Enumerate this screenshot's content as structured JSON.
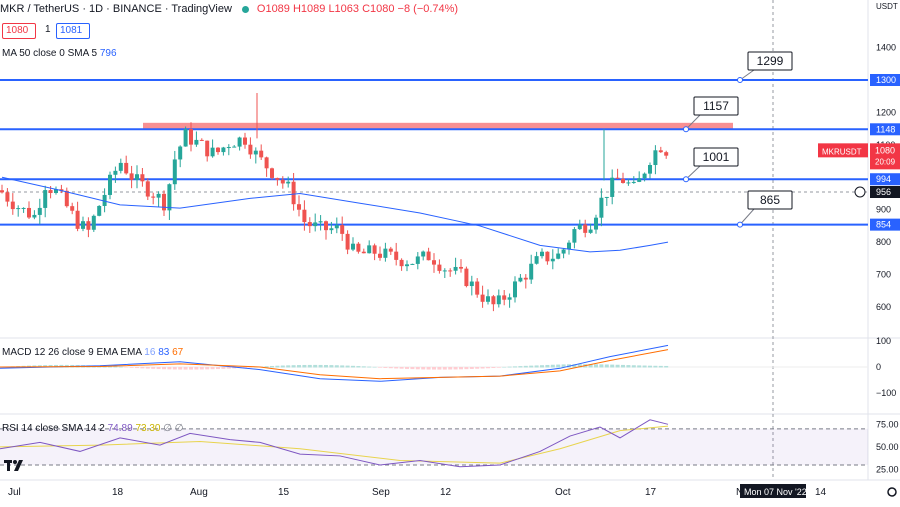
{
  "header": {
    "symbol": "MKR / TetherUS · 1D · BINANCE · TradingView",
    "ohlc": "O1089 H1089 L1063 C1080 −8 (−0.74%)",
    "sell_price": "1080",
    "spread": "1",
    "buy_price": "1081"
  },
  "indicators": {
    "ma_label": "MA 50 close 0 SMA 5",
    "ma_value": "796",
    "macd_label": "MACD 12 26 close 9 EMA EMA",
    "macd_values": [
      "16",
      "83",
      "67"
    ],
    "rsi_label": "RSI 14 close SMA 14 2",
    "rsi_values": [
      "74.89",
      "73.30",
      "∅",
      "∅"
    ]
  },
  "axis": {
    "currency": "USDT",
    "price_ticks": [
      "1400",
      "1300",
      "1200",
      "1100",
      "900",
      "800",
      "700",
      "600"
    ],
    "macd_ticks": [
      "100",
      "0",
      "−100"
    ],
    "rsi_ticks": [
      "75.00",
      "50.00",
      "25.00"
    ],
    "time_ticks": [
      "Jul",
      "18",
      "Aug",
      "15",
      "Sep",
      "12",
      "Oct",
      "17",
      "N",
      "14"
    ],
    "crosshair_date": "Mon 07 Nov '22"
  },
  "labels": {
    "symbol_tag": "MKRUSDT",
    "last_price": "1080",
    "countdown": "20:09",
    "crosshair_price": "956"
  },
  "chart_data": {
    "type": "candlestick",
    "title": "MKR / TetherUS · 1D · BINANCE",
    "x_range": [
      "Jul",
      "Nov '22"
    ],
    "ylim": [
      560,
      1430
    ],
    "horizontal_levels": [
      {
        "price": 1300,
        "label": "1300"
      },
      {
        "price": 1148,
        "label": "1148"
      },
      {
        "price": 994,
        "label": "994"
      },
      {
        "price": 854,
        "label": "854"
      }
    ],
    "annotations": [
      {
        "text": "1299",
        "price": 1300
      },
      {
        "text": "1157",
        "price": 1148
      },
      {
        "text": "1001",
        "price": 994
      },
      {
        "text": "865",
        "price": 854
      }
    ],
    "resistance_zone": [
      1148,
      1168
    ],
    "last_close": 1080,
    "ma50_last": 796,
    "macd": {
      "histogram": 16,
      "macd": 83,
      "signal": 67
    },
    "rsi": {
      "value": 74.89,
      "sma": 73.3
    }
  },
  "colors": {
    "up": "#26a69a",
    "down": "#ef5350",
    "level": "#2962ff",
    "ma": "#2962ff",
    "zone": "#f77c80",
    "macd_line": "#2962ff",
    "signal_line": "#ff6d00",
    "rsi_line": "#7e57c2",
    "rsi_sma": "#e8d44d"
  }
}
